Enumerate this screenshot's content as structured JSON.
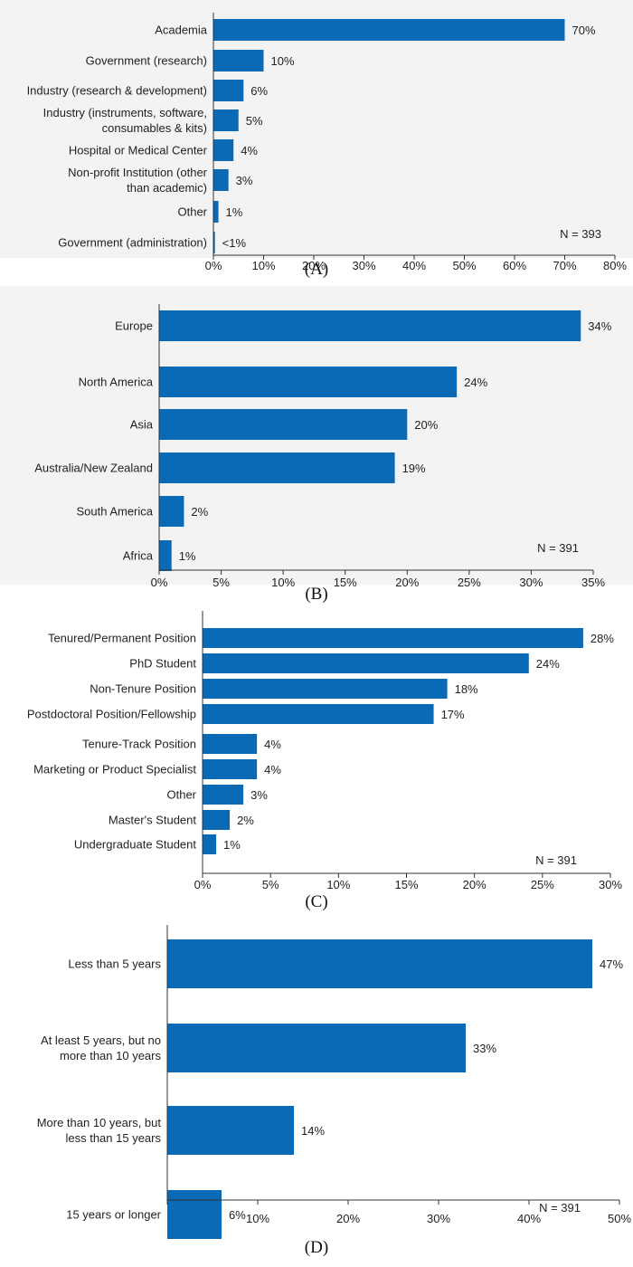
{
  "panel_labels": {
    "a": "(A)",
    "b": "(B)",
    "c": "(C)",
    "d": "(D)"
  },
  "chart_data": [
    {
      "id": "A",
      "type": "bar",
      "orientation": "horizontal",
      "categories": [
        [
          "Academia"
        ],
        [
          "Government (research)"
        ],
        [
          "Industry (research & development)"
        ],
        [
          "Industry (instruments, software,",
          "consumables & kits)"
        ],
        [
          "Hospital or Medical Center"
        ],
        [
          "Non-profit Institution (other",
          "than academic)"
        ],
        [
          "Other"
        ],
        [
          "Government (administration)"
        ]
      ],
      "values": [
        70,
        10,
        6,
        5,
        4,
        3,
        1,
        0.3
      ],
      "value_labels": [
        "70%",
        "10%",
        "6%",
        "5%",
        "4%",
        "3%",
        "1%",
        "<1%"
      ],
      "xlim": [
        0,
        80
      ],
      "xticks": [
        "0%",
        "10%",
        "20%",
        "30%",
        "40%",
        "50%",
        "60%",
        "70%",
        "80%"
      ],
      "annotation": "N = 393",
      "bar_color": "#0a6ab5"
    },
    {
      "id": "B",
      "type": "bar",
      "orientation": "horizontal",
      "categories": [
        [
          "Europe"
        ],
        [
          "North America"
        ],
        [
          "Asia"
        ],
        [
          "Australia/New Zealand"
        ],
        [
          "South America"
        ],
        [
          "Africa"
        ]
      ],
      "values": [
        34,
        24,
        20,
        19,
        2,
        1
      ],
      "value_labels": [
        "34%",
        "24%",
        "20%",
        "19%",
        "2%",
        "1%"
      ],
      "xlim": [
        0,
        35
      ],
      "xticks": [
        "0%",
        "5%",
        "10%",
        "15%",
        "20%",
        "25%",
        "30%",
        "35%"
      ],
      "annotation": "N = 391",
      "bar_color": "#0a6ab5"
    },
    {
      "id": "C",
      "type": "bar",
      "orientation": "horizontal",
      "categories": [
        [
          "Tenured/Permanent Position"
        ],
        [
          "PhD Student"
        ],
        [
          "Non-Tenure Position"
        ],
        [
          "Postdoctoral Position/Fellowship"
        ],
        [
          "Tenure-Track Position"
        ],
        [
          "Marketing or Product Specialist"
        ],
        [
          "Other"
        ],
        [
          "Master's Student"
        ],
        [
          "Undergraduate Student"
        ]
      ],
      "values": [
        28,
        24,
        18,
        17,
        4,
        4,
        3,
        2,
        1
      ],
      "value_labels": [
        "28%",
        "24%",
        "18%",
        "17%",
        "4%",
        "4%",
        "3%",
        "2%",
        "1%"
      ],
      "xlim": [
        0,
        30
      ],
      "xticks": [
        "0%",
        "5%",
        "10%",
        "15%",
        "20%",
        "25%",
        "30%"
      ],
      "annotation": "N = 391",
      "bar_color": "#0a6ab5"
    },
    {
      "id": "D",
      "type": "bar",
      "orientation": "horizontal",
      "categories": [
        [
          "Less than 5 years"
        ],
        [
          "At least 5 years, but no",
          "more than 10 years"
        ],
        [
          "More than 10 years, but",
          "less than 15 years"
        ],
        [
          "15 years or longer"
        ]
      ],
      "values": [
        47,
        33,
        14,
        6
      ],
      "value_labels": [
        "47%",
        "33%",
        "14%",
        "6%"
      ],
      "xlim": [
        0,
        50
      ],
      "xticks": [
        "",
        "10%",
        "20%",
        "30%",
        "40%",
        "50%"
      ],
      "annotation": "N = 391",
      "bar_color": "#0a6ab5"
    }
  ]
}
